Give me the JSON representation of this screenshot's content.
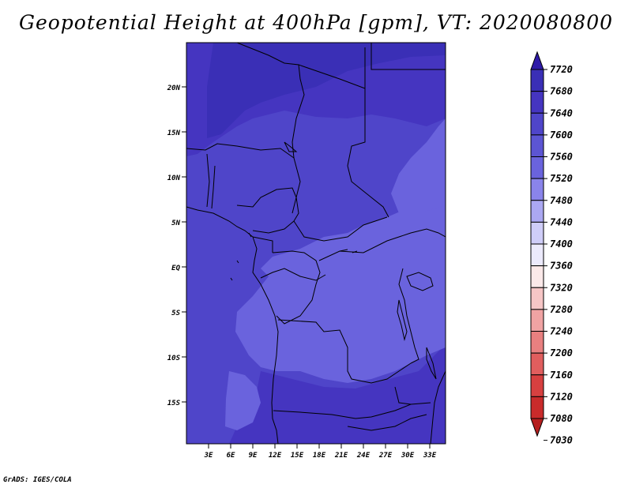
{
  "title": "Geopotential Height at 400hPa [gpm], VT: 2020080800",
  "footer": "GrADS: IGES/COLA",
  "map": {
    "lat_labels": [
      "20N",
      "15N",
      "10N",
      "5N",
      "EQ",
      "5S",
      "10S",
      "15S"
    ],
    "lon_labels": [
      "3E",
      "6E",
      "9E",
      "12E",
      "15E",
      "18E",
      "21E",
      "24E",
      "27E",
      "30E",
      "33E"
    ]
  },
  "colorbar": {
    "levels": [
      "7720",
      "7680",
      "7640",
      "7600",
      "7560",
      "7520",
      "7480",
      "7440",
      "7400",
      "7360",
      "7320",
      "7280",
      "7240",
      "7200",
      "7160",
      "7120",
      "7080",
      "7030"
    ],
    "colors": [
      "#2e1aa8",
      "#3a2fb6",
      "#4535c0",
      "#4f45c9",
      "#5c55d3",
      "#6a63dd",
      "#8a84ea",
      "#aba8f2",
      "#cfcdf8",
      "#eceafc",
      "#fbe9e9",
      "#f6c6c6",
      "#f0a3a3",
      "#e88080",
      "#e05e5e",
      "#d74040",
      "#c92b2b",
      "#b51f1f"
    ]
  },
  "chart_data": {
    "type": "heatmap",
    "title": "Geopotential Height at 400hPa [gpm], VT: 2020080800",
    "unit": "gpm",
    "xlabel": "",
    "ylabel": "",
    "x_ticks": [
      "3E",
      "6E",
      "9E",
      "12E",
      "15E",
      "18E",
      "21E",
      "24E",
      "27E",
      "30E",
      "33E"
    ],
    "y_ticks": [
      "20N",
      "15N",
      "10N",
      "5N",
      "EQ",
      "5S",
      "10S",
      "15S"
    ],
    "legend_levels": [
      7720,
      7680,
      7640,
      7600,
      7560,
      7520,
      7480,
      7440,
      7400,
      7360,
      7320,
      7280,
      7240,
      7200,
      7160,
      7120,
      7080,
      7030
    ],
    "field_color_classes": {
      "northern_band": "#4535c0",
      "west_africa_gulf": "#4f45c9",
      "central_congo_basin": "#6a63dd",
      "eastern_african_highlands": "#6a63dd",
      "southwest_angola_coast": "#6a63dd",
      "southern_band": "#4f45c9"
    }
  }
}
